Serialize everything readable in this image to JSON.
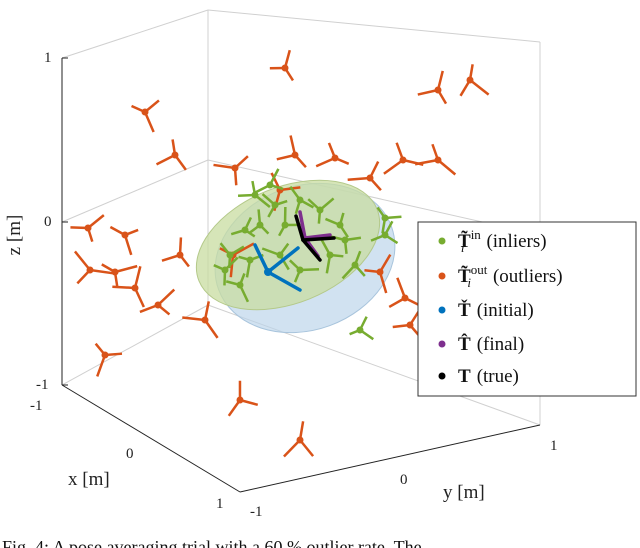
{
  "figure": {
    "axes": {
      "z_label": "z [m]",
      "x_label": "x [m]",
      "y_label": "y [m]",
      "z_ticks": [
        "1",
        "0",
        "-1"
      ],
      "x_ticks": [
        "-1",
        "0",
        "1"
      ],
      "y_ticks": [
        "-1",
        "0",
        "1"
      ]
    },
    "legend": [
      {
        "symbol": "T̃",
        "sub": "i",
        "sup": "in",
        "label": "(inliers)",
        "color": "#77ac30"
      },
      {
        "symbol": "T̃",
        "sub": "i",
        "sup": "out",
        "label": "(outliers)",
        "color": "#d95319"
      },
      {
        "symbol": "Ť",
        "label": "(initial)",
        "color": "#0072bd"
      },
      {
        "symbol": "T̂",
        "label": "(final)",
        "color": "#7e2f8e"
      },
      {
        "symbol": "T",
        "label": "(true)",
        "color": "#000000"
      }
    ],
    "caption": "Fig. 4: A pose averaging trial with a 60 % outlier rate. The"
  }
}
